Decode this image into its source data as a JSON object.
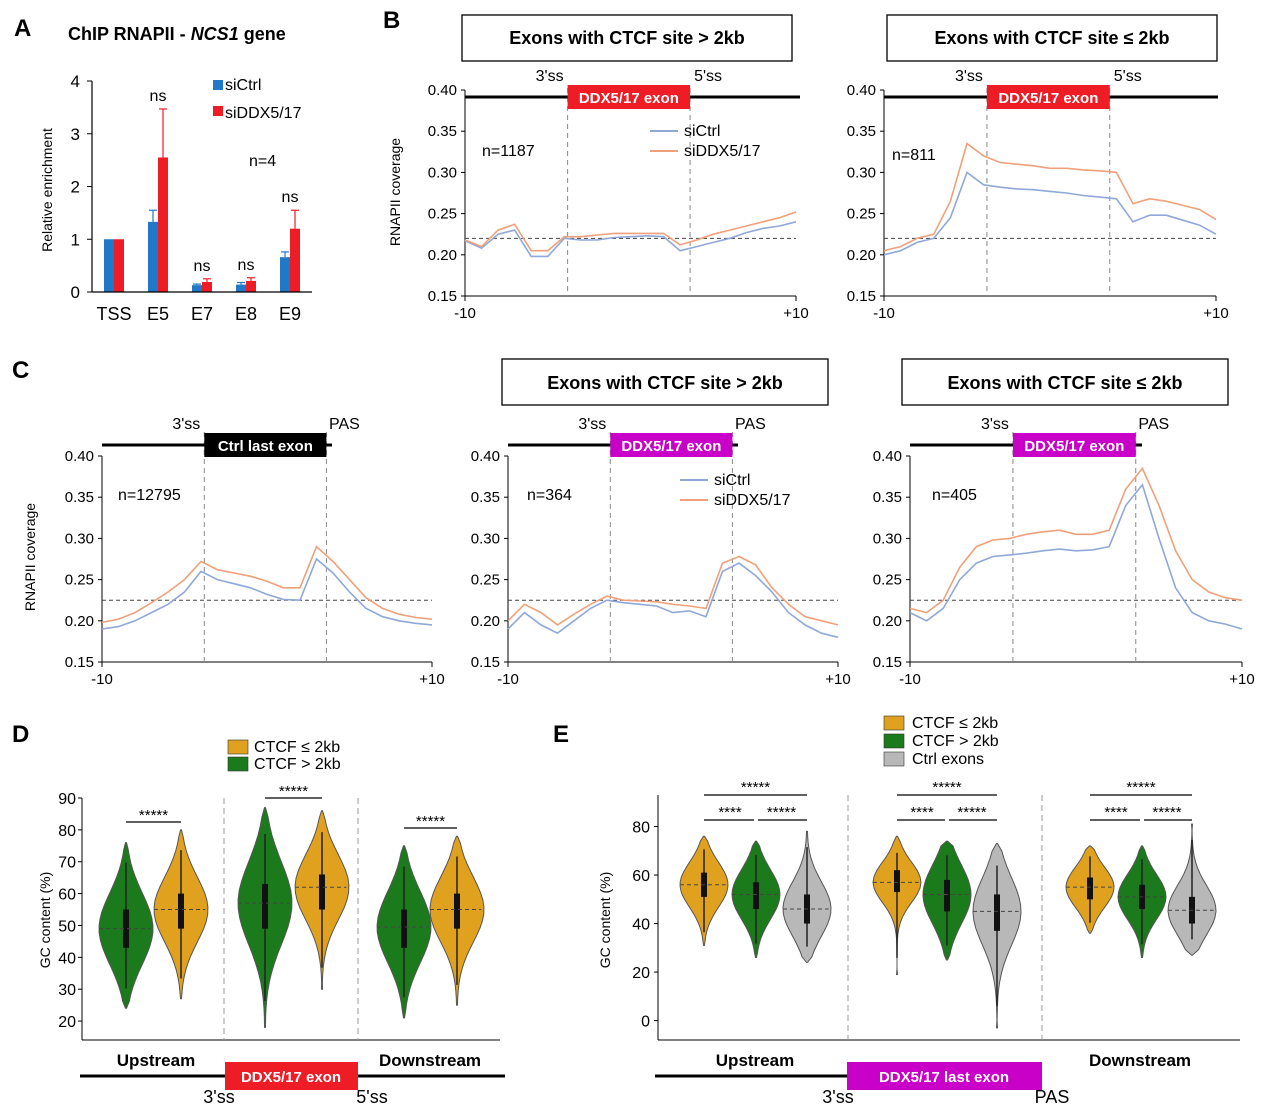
{
  "colors": {
    "siCtrl_bar": "#1f78c8",
    "siDDX_bar": "#ee1c25",
    "siCtrl_line": "#8fa8d8",
    "siDDX_line": "#f0a07a",
    "ctcf_le": "#e0a21e",
    "ctcf_gt": "#1b7a1b",
    "ctrl_exons": "#b8b8b8",
    "red_box": "#ee1c25",
    "magenta_box": "#c800c8",
    "black_box": "#000000"
  },
  "panels": {
    "a": "A",
    "b": "B",
    "c": "C",
    "d": "D",
    "e": "E"
  },
  "panelA": {
    "title_prefix": "ChIP RNAPII - ",
    "title_gene": "NCS1",
    "title_suffix": " gene",
    "n_label": "n=4",
    "ylabel": "Relative enrichment",
    "y_ticks": [
      "0",
      "1",
      "2",
      "3",
      "4"
    ],
    "legend": [
      "siCtrl",
      "siDDX5/17"
    ],
    "sig_labels": [
      "ns",
      "ns",
      "ns",
      "ns"
    ]
  },
  "panelB": {
    "box_left": "Exons with CTCF site > 2kb",
    "box_right": "Exons with CTCF site ≤ 2kb",
    "exon_label": "DDX5/17 exon",
    "ss3": "3'ss",
    "ss5": "5'ss",
    "ylabel": "RNAPII coverage",
    "y_ticks": [
      "0.15",
      "0.20",
      "0.25",
      "0.30",
      "0.35",
      "0.40"
    ],
    "x_ticks": [
      "-10",
      "+10"
    ],
    "n_left": "n=1187",
    "n_right": "n=811",
    "legend": [
      "siCtrl",
      "siDDX5/17"
    ]
  },
  "panelC": {
    "box_mid": "Exons with CTCF site > 2kb",
    "box_right": "Exons with CTCF site ≤ 2kb",
    "exon_ctrl": "Ctrl last exon",
    "exon_ddx": "DDX5/17 exon",
    "ss3": "3'ss",
    "pas": "PAS",
    "ylabel": "RNAPII coverage",
    "y_ticks": [
      "0.15",
      "0.20",
      "0.25",
      "0.30",
      "0.35",
      "0.40"
    ],
    "x_ticks": [
      "-10",
      "+10"
    ],
    "n_left": "n=12795",
    "n_mid": "n=364",
    "n_right": "n=405",
    "legend": [
      "siCtrl",
      "siDDX5/17"
    ]
  },
  "panelD": {
    "ylabel": "GC content (%)",
    "y_ticks": [
      "20",
      "30",
      "40",
      "50",
      "60",
      "70",
      "80",
      "90"
    ],
    "legend": [
      "CTCF ≤ 2kb",
      "CTCF > 2kb"
    ],
    "categories": [
      "Upstream",
      "Downstream"
    ],
    "exon_label": "DDX5/17 exon",
    "ss3": "3'ss",
    "ss5": "5'ss",
    "sig": [
      "*****",
      "*****",
      "*****"
    ]
  },
  "panelE": {
    "ylabel": "GC content (%)",
    "y_ticks": [
      "0",
      "20",
      "40",
      "60",
      "80"
    ],
    "legend": [
      "CTCF ≤ 2kb",
      "CTCF > 2kb",
      "Ctrl exons"
    ],
    "categories": [
      "Upstream",
      "Downstream"
    ],
    "exon_label": "DDX5/17 last exon",
    "ss3": "3'ss",
    "pas": "PAS",
    "sig_top": [
      "*****",
      "*****",
      "*****"
    ],
    "sig_left": [
      "****",
      "****",
      "****"
    ],
    "sig_right": [
      "*****",
      "*****",
      "*****"
    ]
  },
  "chart_data": [
    {
      "type": "bar",
      "title": "ChIP RNAPII - NCS1 gene",
      "categories": [
        "TSS",
        "E5",
        "E7",
        "E8",
        "E9"
      ],
      "series": [
        {
          "name": "siCtrl",
          "values": [
            1.0,
            1.33,
            0.13,
            0.14,
            0.66
          ],
          "errors": [
            0,
            0.22,
            0.02,
            0.04,
            0.1
          ]
        },
        {
          "name": "siDDX5/17",
          "values": [
            1.0,
            2.55,
            0.19,
            0.21,
            1.2
          ],
          "errors": [
            0,
            0.92,
            0.06,
            0.06,
            0.35
          ]
        }
      ],
      "ylabel": "Relative enrichment",
      "ylim": [
        0,
        4
      ]
    },
    {
      "type": "line",
      "title": "Exons with CTCF site > 2kb",
      "n": "n=1187",
      "ylabel": "RNAPII coverage",
      "ylim": [
        0.15,
        0.4
      ],
      "xlim": [
        -10,
        10
      ],
      "baseline": 0.22,
      "x": [
        -10,
        -9,
        -8,
        -7,
        -6,
        -5,
        -4,
        -3,
        -2,
        -1,
        0,
        1,
        2,
        3,
        4,
        5,
        6,
        7,
        8,
        9,
        10
      ],
      "series": [
        {
          "name": "siCtrl",
          "values": [
            0.217,
            0.208,
            0.225,
            0.23,
            0.198,
            0.198,
            0.22,
            0.218,
            0.218,
            0.221,
            0.222,
            0.223,
            0.222,
            0.205,
            0.21,
            0.215,
            0.22,
            0.227,
            0.232,
            0.235,
            0.24
          ]
        },
        {
          "name": "siDDX5/17",
          "values": [
            0.218,
            0.21,
            0.23,
            0.237,
            0.205,
            0.205,
            0.222,
            0.222,
            0.224,
            0.226,
            0.226,
            0.226,
            0.226,
            0.212,
            0.218,
            0.225,
            0.23,
            0.235,
            0.24,
            0.245,
            0.252
          ]
        }
      ]
    },
    {
      "type": "line",
      "title": "Exons with CTCF site ≤ 2kb",
      "n": "n=811",
      "ylabel": "RNAPII coverage",
      "ylim": [
        0.15,
        0.4
      ],
      "xlim": [
        -10,
        10
      ],
      "baseline": 0.22,
      "x": [
        -10,
        -9,
        -8,
        -7,
        -6,
        -5,
        -4,
        -3,
        -2,
        -1,
        0,
        1,
        2,
        3,
        4,
        5,
        6,
        7,
        8,
        9,
        10
      ],
      "series": [
        {
          "name": "siCtrl",
          "values": [
            0.2,
            0.205,
            0.215,
            0.22,
            0.245,
            0.3,
            0.285,
            0.282,
            0.28,
            0.279,
            0.277,
            0.275,
            0.272,
            0.27,
            0.268,
            0.24,
            0.248,
            0.248,
            0.242,
            0.236,
            0.225
          ]
        },
        {
          "name": "siDDX5/17",
          "values": [
            0.205,
            0.21,
            0.22,
            0.225,
            0.265,
            0.335,
            0.32,
            0.312,
            0.31,
            0.308,
            0.305,
            0.305,
            0.303,
            0.302,
            0.3,
            0.262,
            0.268,
            0.265,
            0.26,
            0.255,
            0.243
          ]
        }
      ]
    },
    {
      "type": "line",
      "title": "Ctrl last exon",
      "n": "n=12795",
      "ylabel": "RNAPII coverage",
      "ylim": [
        0.15,
        0.4
      ],
      "xlim": [
        -10,
        10
      ],
      "baseline": 0.225,
      "x": [
        -10,
        -9,
        -8,
        -7,
        -6,
        -5,
        -4,
        -3,
        -2,
        -1,
        0,
        1,
        2,
        3,
        4,
        5,
        6,
        7,
        8,
        9,
        10
      ],
      "series": [
        {
          "name": "siCtrl",
          "values": [
            0.19,
            0.193,
            0.2,
            0.21,
            0.22,
            0.235,
            0.26,
            0.25,
            0.245,
            0.24,
            0.232,
            0.226,
            0.225,
            0.275,
            0.258,
            0.235,
            0.215,
            0.205,
            0.2,
            0.197,
            0.195
          ]
        },
        {
          "name": "siDDX5/17",
          "values": [
            0.198,
            0.202,
            0.21,
            0.222,
            0.235,
            0.25,
            0.272,
            0.262,
            0.258,
            0.254,
            0.248,
            0.24,
            0.24,
            0.29,
            0.272,
            0.25,
            0.228,
            0.215,
            0.208,
            0.204,
            0.202
          ]
        }
      ]
    },
    {
      "type": "line",
      "title": "Exons with CTCF site > 2kb",
      "n": "n=364",
      "ylabel": "RNAPII coverage",
      "ylim": [
        0.15,
        0.4
      ],
      "xlim": [
        -10,
        10
      ],
      "baseline": 0.225,
      "x": [
        -10,
        -9,
        -8,
        -7,
        -6,
        -5,
        -4,
        -3,
        -2,
        -1,
        0,
        1,
        2,
        3,
        4,
        5,
        6,
        7,
        8,
        9,
        10
      ],
      "series": [
        {
          "name": "siCtrl",
          "values": [
            0.19,
            0.21,
            0.195,
            0.185,
            0.2,
            0.215,
            0.225,
            0.222,
            0.22,
            0.218,
            0.21,
            0.212,
            0.205,
            0.26,
            0.27,
            0.255,
            0.235,
            0.21,
            0.195,
            0.185,
            0.18
          ]
        },
        {
          "name": "siDDX5/17",
          "values": [
            0.2,
            0.22,
            0.21,
            0.195,
            0.208,
            0.22,
            0.23,
            0.225,
            0.224,
            0.223,
            0.22,
            0.218,
            0.215,
            0.27,
            0.278,
            0.268,
            0.24,
            0.22,
            0.205,
            0.2,
            0.195
          ]
        }
      ]
    },
    {
      "type": "line",
      "title": "Exons with CTCF site ≤ 2kb",
      "n": "n=405",
      "ylabel": "RNAPII coverage",
      "ylim": [
        0.15,
        0.4
      ],
      "xlim": [
        -10,
        10
      ],
      "baseline": 0.225,
      "x": [
        -10,
        -9,
        -8,
        -7,
        -6,
        -5,
        -4,
        -3,
        -2,
        -1,
        0,
        1,
        2,
        3,
        4,
        5,
        6,
        7,
        8,
        9,
        10
      ],
      "series": [
        {
          "name": "siCtrl",
          "values": [
            0.21,
            0.2,
            0.215,
            0.25,
            0.27,
            0.278,
            0.28,
            0.282,
            0.285,
            0.287,
            0.285,
            0.286,
            0.29,
            0.34,
            0.365,
            0.3,
            0.24,
            0.21,
            0.2,
            0.196,
            0.19
          ]
        },
        {
          "name": "siDDX5/17",
          "values": [
            0.215,
            0.21,
            0.225,
            0.265,
            0.29,
            0.298,
            0.3,
            0.305,
            0.308,
            0.31,
            0.305,
            0.305,
            0.31,
            0.36,
            0.385,
            0.34,
            0.285,
            0.25,
            0.235,
            0.228,
            0.225
          ]
        }
      ]
    },
    {
      "type": "violin",
      "ylabel": "GC content (%)",
      "ylim": [
        20,
        90
      ],
      "categories": [
        "Upstream",
        "DDX5/17 exon",
        "Downstream"
      ],
      "series": [
        {
          "name": "CTCF > 2kb",
          "medians": [
            49,
            57,
            49.5
          ],
          "q1": [
            43,
            49,
            43
          ],
          "q3": [
            55,
            63,
            55
          ],
          "min": [
            24,
            18,
            21
          ],
          "max": [
            76,
            87,
            75
          ]
        },
        {
          "name": "CTCF ≤ 2kb",
          "medians": [
            55,
            62,
            55
          ],
          "q1": [
            49,
            55,
            49
          ],
          "q3": [
            60,
            66,
            60
          ],
          "min": [
            27,
            30,
            25
          ],
          "max": [
            80,
            86,
            78
          ]
        }
      ]
    },
    {
      "type": "violin",
      "ylabel": "GC content (%)",
      "ylim": [
        0,
        90
      ],
      "categories": [
        "Upstream",
        "DDX5/17 last exon",
        "Downstream"
      ],
      "series": [
        {
          "name": "CTCF ≤ 2kb",
          "medians": [
            56,
            57,
            55
          ],
          "q1": [
            51,
            53,
            50
          ],
          "q3": [
            61,
            62,
            59
          ],
          "min": [
            31,
            19,
            36
          ],
          "max": [
            76,
            76,
            72
          ]
        },
        {
          "name": "CTCF > 2kb",
          "medians": [
            52,
            52,
            51
          ],
          "q1": [
            46,
            45,
            46
          ],
          "q3": [
            57,
            58,
            56
          ],
          "min": [
            26,
            25,
            26
          ],
          "max": [
            74,
            74,
            72
          ]
        },
        {
          "name": "Ctrl exons",
          "medians": [
            46,
            45,
            45.5
          ],
          "q1": [
            40,
            37,
            40
          ],
          "q3": [
            52,
            52,
            51
          ],
          "min": [
            24,
            -3,
            27
          ],
          "max": [
            78,
            73,
            81
          ]
        }
      ]
    }
  ]
}
